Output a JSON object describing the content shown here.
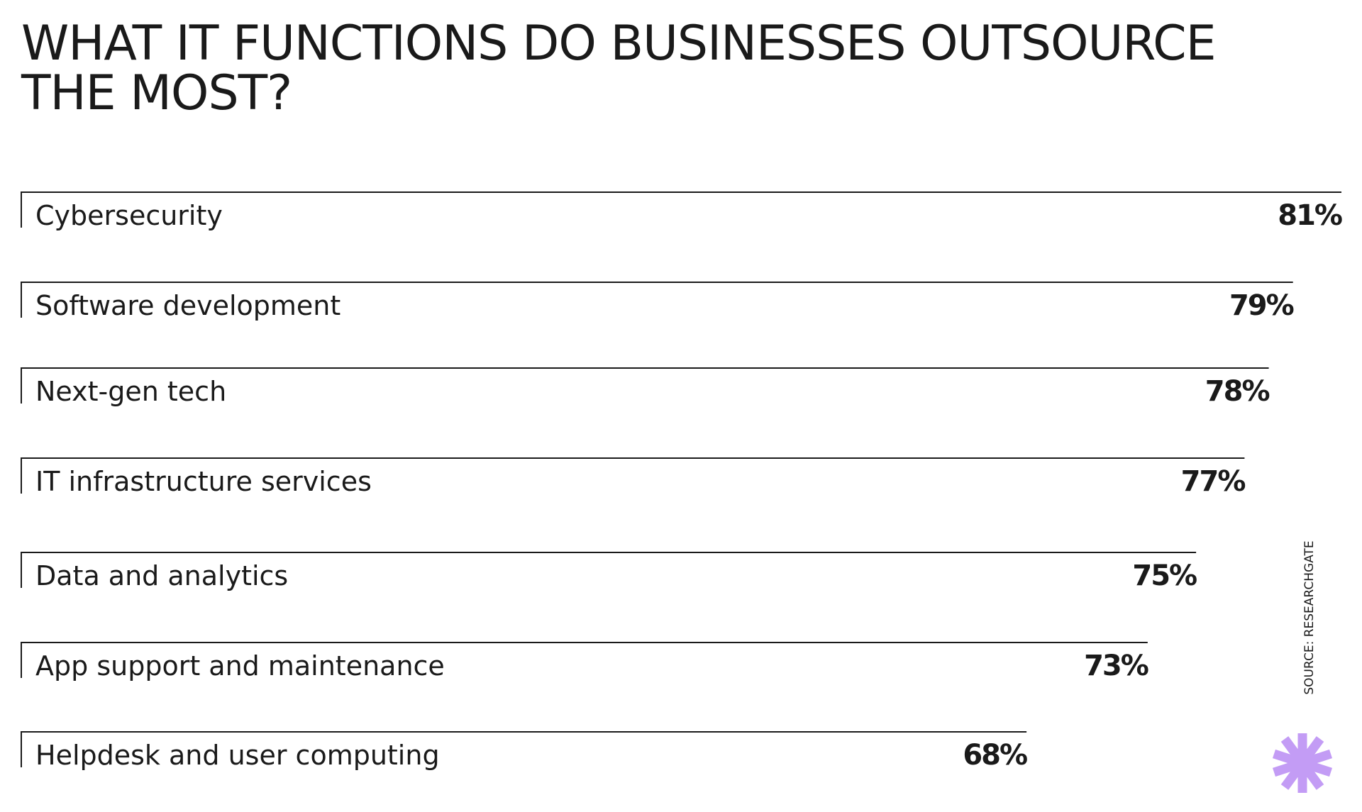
{
  "chart_data": {
    "type": "bar",
    "title": [
      "WHAT IT FUNCTIONS DO BUSINESSES OUTSOURCE",
      "THE MOST?"
    ],
    "categories": [
      "Cybersecurity",
      "Software development",
      "Next-gen tech",
      "IT infrastructure services",
      "Data and analytics",
      "App support and maintenance",
      "Helpdesk and user computing"
    ],
    "values": [
      81,
      79,
      78,
      77,
      75,
      73,
      68
    ],
    "value_labels": [
      "81%",
      "79%",
      "78%",
      "77%",
      "75%",
      "73%",
      "68%"
    ],
    "color": "#1a1a1a",
    "source": "SOURCE: RESEARCHGATE"
  }
}
